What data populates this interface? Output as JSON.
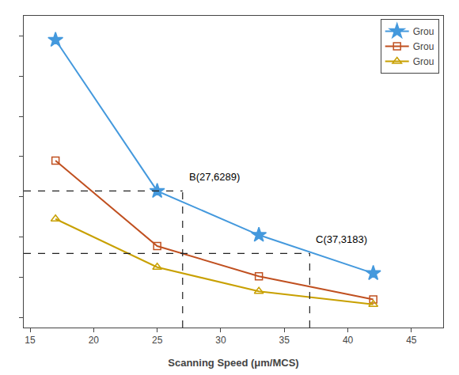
{
  "chart_data": {
    "type": "line",
    "xlabel": "Scanning Speed (μm/MCS)",
    "x": [
      17,
      25,
      33,
      42
    ],
    "xlim": [
      14.5,
      47.5
    ],
    "xticks": [
      15,
      20,
      25,
      30,
      35,
      40,
      45
    ],
    "ylim": [
      -500,
      15000
    ],
    "yticks": [
      0,
      2000,
      4000,
      6000,
      8000,
      10000,
      12000,
      14000
    ],
    "tick_labels": "x",
    "grid": false,
    "legend": "upper right",
    "series": [
      {
        "name": "Grou",
        "color": "#4499DD",
        "marker": "star",
        "values": [
          13800,
          6289,
          4100,
          2200
        ]
      },
      {
        "name": "Grou",
        "color": "#C05020",
        "marker": "square-open",
        "values": [
          7800,
          3550,
          2050,
          900
        ]
      },
      {
        "name": "Grou",
        "color": "#C8A000",
        "marker": "triangle-up-open",
        "values": [
          4900,
          2500,
          1300,
          650
        ]
      }
    ],
    "reference_points": {
      "color": "#222222",
      "line_style": "dash",
      "points": [
        {
          "x": 27,
          "y": 6289,
          "label": "B(27,6289)"
        },
        {
          "x": 37,
          "y": 3183,
          "label": "C(37,3183)"
        }
      ]
    }
  }
}
